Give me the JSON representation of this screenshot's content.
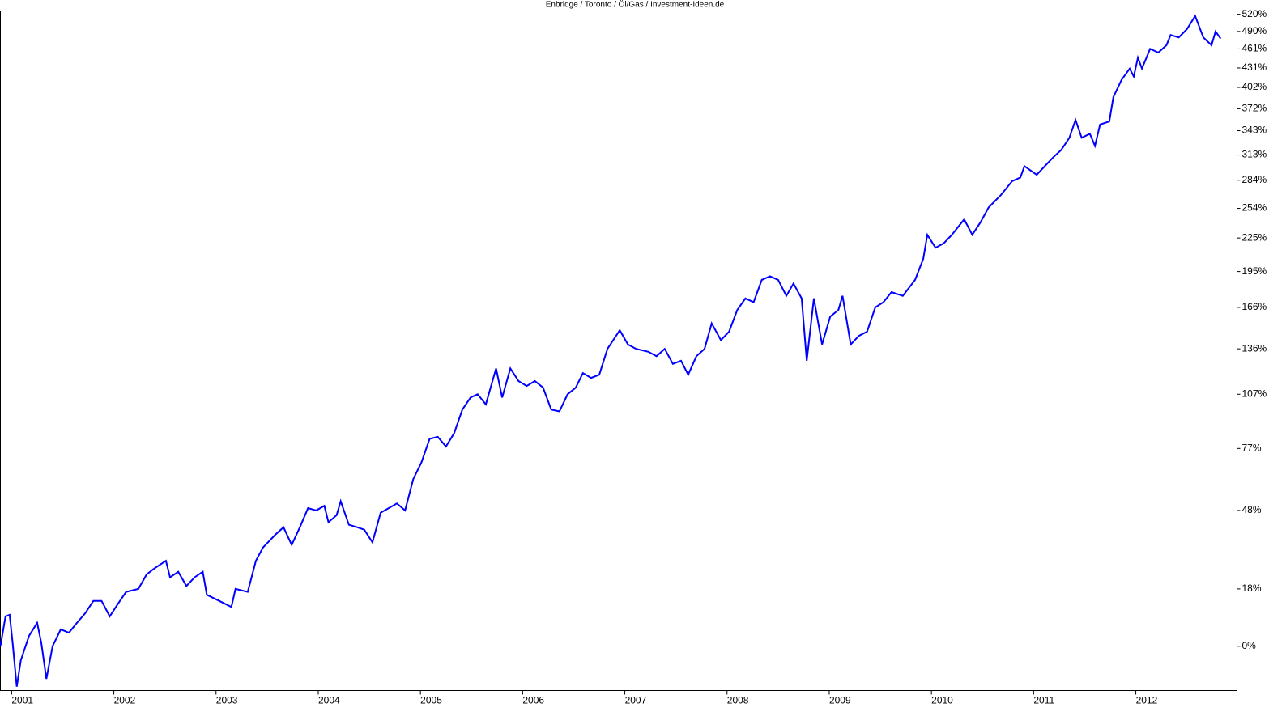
{
  "chart_data": {
    "type": "line",
    "title": "Enbridge / Toronto / Öl/Gas / Investment-Ideen.de",
    "log_scale": true,
    "x": [
      2000.89,
      2000.94,
      2000.98,
      2001.01,
      2001.05,
      2001.09,
      2001.17,
      2001.25,
      2001.29,
      2001.34,
      2001.4,
      2001.48,
      2001.56,
      2001.64,
      2001.72,
      2001.8,
      2001.88,
      2001.96,
      2002.04,
      2002.12,
      2002.24,
      2002.32,
      2002.39,
      2002.47,
      2002.51,
      2002.55,
      2002.63,
      2002.71,
      2002.79,
      2002.87,
      2002.91,
      2003.03,
      2003.15,
      2003.19,
      2003.31,
      2003.39,
      2003.46,
      2003.58,
      2003.66,
      2003.74,
      2003.82,
      2003.9,
      2003.98,
      2004.06,
      2004.1,
      2004.18,
      2004.22,
      2004.3,
      2004.38,
      2004.45,
      2004.53,
      2004.61,
      2004.69,
      2004.77,
      2004.85,
      2004.93,
      2005.01,
      2005.09,
      2005.17,
      2005.25,
      2005.33,
      2005.41,
      2005.49,
      2005.56,
      2005.64,
      2005.74,
      2005.8,
      2005.88,
      2005.96,
      2006.04,
      2006.12,
      2006.2,
      2006.28,
      2006.36,
      2006.44,
      2006.52,
      2006.59,
      2006.67,
      2006.75,
      2006.83,
      2006.95,
      2007.03,
      2007.11,
      2007.23,
      2007.31,
      2007.39,
      2007.47,
      2007.55,
      2007.62,
      2007.7,
      2007.78,
      2007.85,
      2007.94,
      2008.02,
      2008.1,
      2008.18,
      2008.26,
      2008.34,
      2008.42,
      2008.5,
      2008.58,
      2008.65,
      2008.73,
      2008.78,
      2008.85,
      2008.93,
      2009.01,
      2009.09,
      2009.13,
      2009.21,
      2009.29,
      2009.37,
      2009.45,
      2009.53,
      2009.61,
      2009.72,
      2009.84,
      2009.92,
      2009.96,
      2010.04,
      2010.12,
      2010.2,
      2010.32,
      2010.4,
      2010.48,
      2010.56,
      2010.68,
      2010.79,
      2010.87,
      2010.91,
      2011.03,
      2011.11,
      2011.19,
      2011.27,
      2011.35,
      2011.41,
      2011.47,
      2011.55,
      2011.6,
      2011.65,
      2011.74,
      2011.78,
      2011.86,
      2011.94,
      2011.98,
      2012.02,
      2012.06,
      2012.14,
      2012.22,
      2012.3,
      2012.34,
      2012.42,
      2012.5,
      2012.58,
      2012.66,
      2012.74,
      2012.78,
      2012.83
    ],
    "series": [
      {
        "color": "#0000ff",
        "values": [
          0,
          9,
          9.5,
          1,
          -11,
          -4,
          3,
          7,
          1,
          -9,
          0,
          5,
          4,
          7,
          10,
          14,
          14,
          9,
          13,
          17,
          18,
          23,
          25,
          27,
          28,
          22,
          24,
          19,
          22,
          24,
          16,
          14,
          12,
          18,
          17,
          28,
          33,
          38,
          41,
          34,
          41,
          49,
          48,
          50,
          43,
          46,
          52,
          42,
          41,
          40,
          35,
          47,
          49,
          51,
          48,
          62,
          70,
          82,
          83,
          78,
          85,
          98,
          105,
          107,
          101,
          123,
          105,
          123,
          115,
          112,
          115,
          111,
          98,
          97,
          107,
          111,
          120,
          117,
          119,
          136,
          149,
          139,
          136,
          134,
          131,
          136,
          126,
          128,
          119,
          131,
          136,
          154,
          142,
          148,
          164,
          173,
          170,
          188,
          191,
          188,
          175,
          185,
          173,
          128,
          173,
          139,
          159,
          164,
          175,
          139,
          145,
          148,
          166,
          170,
          178,
          175,
          188,
          206,
          228,
          216,
          220,
          228,
          243,
          228,
          240,
          255,
          268,
          283,
          287,
          300,
          290,
          300,
          310,
          319,
          334,
          357,
          334,
          339,
          324,
          351,
          355,
          388,
          413,
          430,
          418,
          447,
          430,
          461,
          455,
          467,
          484,
          480,
          494,
          517,
          480,
          467,
          490,
          478
        ]
      }
    ],
    "xlim": [
      2000.89,
      2012.99
    ],
    "xticks": [
      2001,
      2002,
      2003,
      2004,
      2005,
      2006,
      2007,
      2008,
      2009,
      2010,
      2011,
      2012
    ],
    "ylim": [
      -12,
      526
    ],
    "yticks": [
      {
        "value": 0,
        "label": "0%"
      },
      {
        "value": 18,
        "label": "18%"
      },
      {
        "value": 48,
        "label": "48%"
      },
      {
        "value": 77,
        "label": "77%"
      },
      {
        "value": 107,
        "label": "107%"
      },
      {
        "value": 136,
        "label": "136%"
      },
      {
        "value": 166,
        "label": "166%"
      },
      {
        "value": 195,
        "label": "195%"
      },
      {
        "value": 225,
        "label": "225%"
      },
      {
        "value": 254,
        "label": "254%"
      },
      {
        "value": 284,
        "label": "284%"
      },
      {
        "value": 313,
        "label": "313%"
      },
      {
        "value": 343,
        "label": "343%"
      },
      {
        "value": 372,
        "label": "372%"
      },
      {
        "value": 402,
        "label": "402%"
      },
      {
        "value": 431,
        "label": "431%"
      },
      {
        "value": 461,
        "label": "461%"
      },
      {
        "value": 490,
        "label": "490%"
      },
      {
        "value": 520,
        "label": "520%"
      }
    ]
  }
}
